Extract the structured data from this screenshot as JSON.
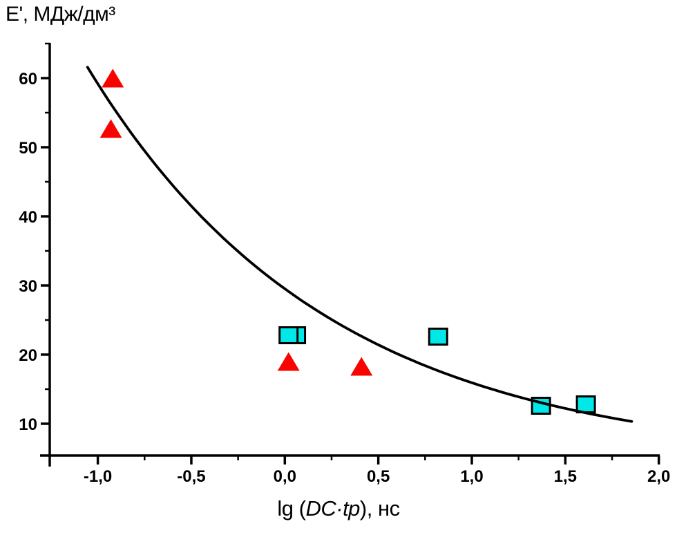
{
  "chart_data": {
    "type": "scatter",
    "title": "E', МДж/дм³",
    "xlabel": {
      "prefix": "lg (",
      "italic": "DC·tp",
      "suffix": "), нс"
    },
    "x_axis": {
      "min": -1.25,
      "max": 2.0,
      "major_ticks": [
        -1.0,
        -0.5,
        0.0,
        0.5,
        1.0,
        1.5,
        2.0
      ],
      "major_tick_labels": [
        "-1,0",
        "-0,5",
        "0,0",
        "0,5",
        "1,0",
        "1,5",
        "2,0"
      ],
      "minor_ticks": [
        -0.75,
        -0.25,
        0.25,
        0.75,
        1.25,
        1.75
      ],
      "decimal_separator": ","
    },
    "y_axis": {
      "min": 5.4,
      "max": 65.1,
      "major_ticks": [
        10,
        20,
        30,
        40,
        50,
        60
      ],
      "major_tick_labels": [
        "10",
        "20",
        "30",
        "40",
        "50",
        "60"
      ],
      "minor_ticks": [
        15,
        25,
        35,
        45,
        55,
        65
      ]
    },
    "series": [
      {
        "name": "cyan-squares",
        "marker": "square",
        "fill": "#00e8e8",
        "stroke": "#000000",
        "points": [
          [
            0.06,
            22.8
          ],
          [
            0.02,
            22.8
          ],
          [
            0.82,
            22.6
          ],
          [
            1.37,
            12.6
          ],
          [
            1.61,
            12.8
          ]
        ]
      },
      {
        "name": "red-triangles",
        "marker": "triangle",
        "fill": "#f80400",
        "stroke": "none",
        "points": [
          [
            -0.92,
            60.0
          ],
          [
            -0.93,
            52.7
          ],
          [
            0.02,
            19.0
          ],
          [
            0.41,
            18.3
          ]
        ]
      }
    ],
    "fit_curve": {
      "type": "exponential",
      "formula": "y = A*exp(-b*x) + c",
      "A": 25.1,
      "b": 0.78,
      "c": 4.42,
      "x_start": -1.055,
      "x_end": 1.855,
      "color": "#000000"
    },
    "grid": false,
    "legend": false
  }
}
